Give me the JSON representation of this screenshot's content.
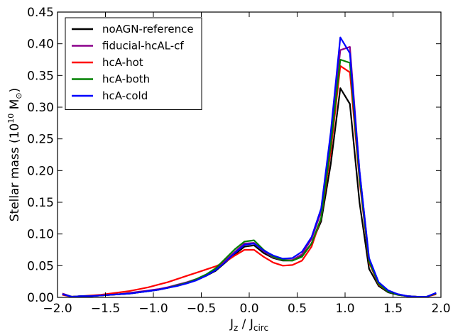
{
  "chart_data": {
    "type": "line",
    "title": "",
    "xlabel": "J",
    "xlabel_sub1": "z",
    "xlabel_mid": " / J",
    "xlabel_sub2": "circ",
    "ylabel": "Stellar mass (10",
    "ylabel_sup": "10",
    "ylabel_unit": " M",
    "ylabel_unit_sub": "⊙",
    "ylabel_close": ")",
    "xlim": [
      -2.0,
      2.0
    ],
    "ylim": [
      0.0,
      0.45
    ],
    "xticks": [
      "−2.0",
      "−1.5",
      "−1.0",
      "−0.5",
      "0.0",
      "0.5",
      "1.0",
      "1.5",
      "2.0"
    ],
    "xtick_values": [
      -2.0,
      -1.5,
      -1.0,
      -0.5,
      0.0,
      0.5,
      1.0,
      1.5,
      2.0
    ],
    "yticks": [
      "0.00",
      "0.05",
      "0.10",
      "0.15",
      "0.20",
      "0.25",
      "0.30",
      "0.35",
      "0.40",
      "0.45"
    ],
    "ytick_values": [
      0.0,
      0.05,
      0.1,
      0.15,
      0.2,
      0.25,
      0.3,
      0.35,
      0.4,
      0.45
    ],
    "grid": false,
    "legend_position": "top-left",
    "x": [
      -1.95,
      -1.85,
      -1.75,
      -1.65,
      -1.55,
      -1.45,
      -1.35,
      -1.25,
      -1.15,
      -1.05,
      -0.95,
      -0.85,
      -0.75,
      -0.65,
      -0.55,
      -0.45,
      -0.35,
      -0.25,
      -0.15,
      -0.05,
      0.05,
      0.15,
      0.25,
      0.35,
      0.45,
      0.55,
      0.65,
      0.75,
      0.85,
      0.95,
      1.05,
      1.15,
      1.25,
      1.35,
      1.45,
      1.55,
      1.65,
      1.75,
      1.85,
      1.95
    ],
    "series": [
      {
        "name": "noAGN-reference",
        "color": "#000000",
        "values": [
          0.005,
          0.001,
          0.002,
          0.002,
          0.003,
          0.004,
          0.005,
          0.006,
          0.008,
          0.01,
          0.012,
          0.015,
          0.019,
          0.023,
          0.028,
          0.034,
          0.042,
          0.055,
          0.068,
          0.08,
          0.082,
          0.07,
          0.062,
          0.058,
          0.058,
          0.065,
          0.085,
          0.12,
          0.21,
          0.33,
          0.305,
          0.15,
          0.045,
          0.018,
          0.008,
          0.004,
          0.002,
          0.001,
          0.001,
          0.006
        ]
      },
      {
        "name": "fiducial-hcAL-cf",
        "color": "#8b008b",
        "values": [
          0.006,
          0.001,
          0.002,
          0.002,
          0.003,
          0.004,
          0.005,
          0.007,
          0.009,
          0.011,
          0.013,
          0.016,
          0.02,
          0.024,
          0.029,
          0.036,
          0.045,
          0.058,
          0.072,
          0.085,
          0.086,
          0.073,
          0.063,
          0.059,
          0.059,
          0.068,
          0.092,
          0.135,
          0.25,
          0.39,
          0.395,
          0.2,
          0.06,
          0.022,
          0.01,
          0.005,
          0.002,
          0.001,
          0.001,
          0.007
        ]
      },
      {
        "name": "hcA-hot",
        "color": "#ff0000",
        "values": [
          0.004,
          0.001,
          0.002,
          0.003,
          0.004,
          0.006,
          0.008,
          0.01,
          0.013,
          0.016,
          0.02,
          0.024,
          0.029,
          0.034,
          0.039,
          0.044,
          0.049,
          0.056,
          0.066,
          0.075,
          0.075,
          0.064,
          0.055,
          0.05,
          0.051,
          0.058,
          0.08,
          0.125,
          0.23,
          0.365,
          0.355,
          0.185,
          0.055,
          0.02,
          0.009,
          0.004,
          0.002,
          0.001,
          0.001,
          0.005
        ]
      },
      {
        "name": "hcA-both",
        "color": "#008000",
        "values": [
          0.005,
          0.001,
          0.002,
          0.002,
          0.003,
          0.004,
          0.005,
          0.006,
          0.008,
          0.01,
          0.012,
          0.015,
          0.019,
          0.023,
          0.029,
          0.036,
          0.046,
          0.061,
          0.076,
          0.088,
          0.09,
          0.075,
          0.064,
          0.059,
          0.058,
          0.064,
          0.085,
          0.125,
          0.24,
          0.375,
          0.37,
          0.19,
          0.057,
          0.021,
          0.009,
          0.004,
          0.002,
          0.001,
          0.001,
          0.006
        ]
      },
      {
        "name": "hcA-cold",
        "color": "#0000ff",
        "values": [
          0.005,
          0.001,
          0.002,
          0.002,
          0.003,
          0.004,
          0.005,
          0.006,
          0.008,
          0.01,
          0.012,
          0.015,
          0.018,
          0.022,
          0.027,
          0.034,
          0.043,
          0.056,
          0.07,
          0.083,
          0.085,
          0.074,
          0.066,
          0.061,
          0.062,
          0.072,
          0.095,
          0.14,
          0.26,
          0.41,
          0.385,
          0.2,
          0.062,
          0.024,
          0.011,
          0.005,
          0.002,
          0.001,
          0.001,
          0.007
        ]
      }
    ]
  }
}
